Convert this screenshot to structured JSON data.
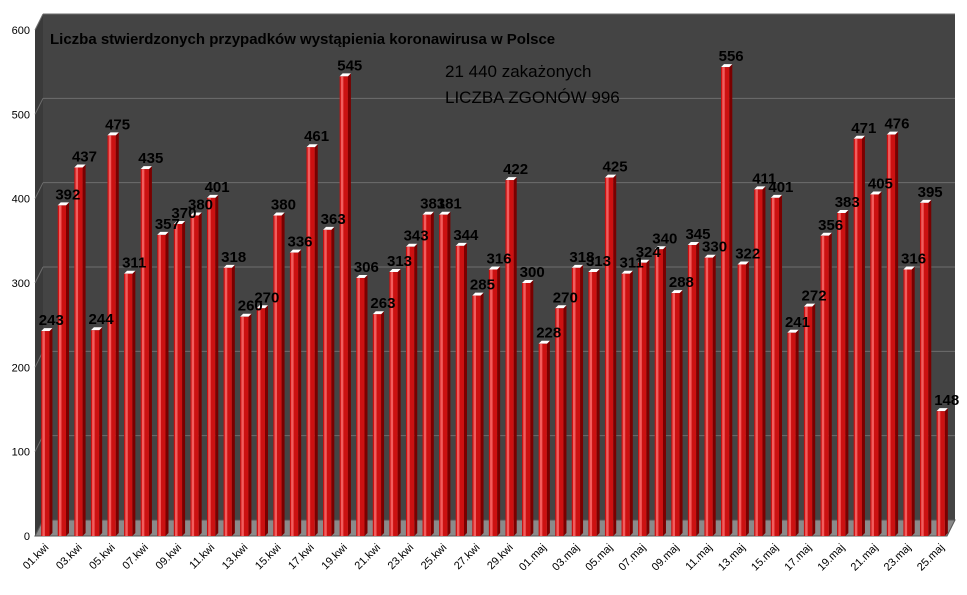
{
  "chart_data": {
    "type": "bar",
    "title": "Liczba stwierdzonych przypadków wystąpienia koronawirusa w Polsce",
    "annotations": [
      "21 440 zakażonych",
      "LICZBA ZGONÓW  996"
    ],
    "xlabel": "",
    "ylabel": "",
    "ylim": [
      0,
      600
    ],
    "yticks": [
      0,
      100,
      200,
      300,
      400,
      500,
      600
    ],
    "grid": true,
    "legend": "none",
    "colors": {
      "plot_bg": "#444444",
      "bar": "#cc1111",
      "bar_highlight": "#ff7777",
      "bar_dark": "#7a0000",
      "grid": "#6e6e6e"
    },
    "x_tick_labels": [
      "01.kwi",
      "03.kwi",
      "05.kwi",
      "07.kwi",
      "09.kwi",
      "11.kwi",
      "13.kwi",
      "15.kwi",
      "17.kwi",
      "19.kwi",
      "21.kwi",
      "23.kwi",
      "25.kwi",
      "27.kwi",
      "29.kwi",
      "01.maj",
      "03.maj",
      "05.maj",
      "07.maj",
      "09.maj",
      "11.maj",
      "13.maj",
      "15.maj",
      "17.maj",
      "19.maj",
      "21.maj",
      "23.maj",
      "25.maj"
    ],
    "categories": [
      "01.kwi",
      "02.kwi",
      "03.kwi",
      "04.kwi",
      "05.kwi",
      "06.kwi",
      "07.kwi",
      "08.kwi",
      "09.kwi",
      "10.kwi",
      "11.kwi",
      "12.kwi",
      "13.kwi",
      "14.kwi",
      "15.kwi",
      "16.kwi",
      "17.kwi",
      "18.kwi",
      "19.kwi",
      "20.kwi",
      "21.kwi",
      "22.kwi",
      "23.kwi",
      "24.kwi",
      "25.kwi",
      "26.kwi",
      "27.kwi",
      "28.kwi",
      "29.kwi",
      "30.kwi",
      "01.maj",
      "02.maj",
      "03.maj",
      "04.maj",
      "05.maj",
      "06.maj",
      "07.maj",
      "08.maj",
      "09.maj",
      "10.maj",
      "11.maj",
      "12.maj",
      "13.maj",
      "14.maj",
      "15.maj",
      "16.maj",
      "17.maj",
      "18.maj",
      "19.maj",
      "20.maj",
      "21.maj",
      "22.maj",
      "23.maj",
      "24.maj",
      "25.maj"
    ],
    "values": [
      243,
      392,
      437,
      244,
      475,
      311,
      435,
      357,
      370,
      380,
      401,
      318,
      260,
      270,
      380,
      336,
      461,
      363,
      545,
      306,
      263,
      313,
      343,
      381,
      381,
      344,
      285,
      316,
      422,
      300,
      228,
      270,
      318,
      313,
      425,
      311,
      324,
      340,
      288,
      345,
      330,
      556,
      322,
      411,
      401,
      241,
      272,
      356,
      383,
      471,
      405,
      476,
      316,
      395,
      148
    ]
  }
}
